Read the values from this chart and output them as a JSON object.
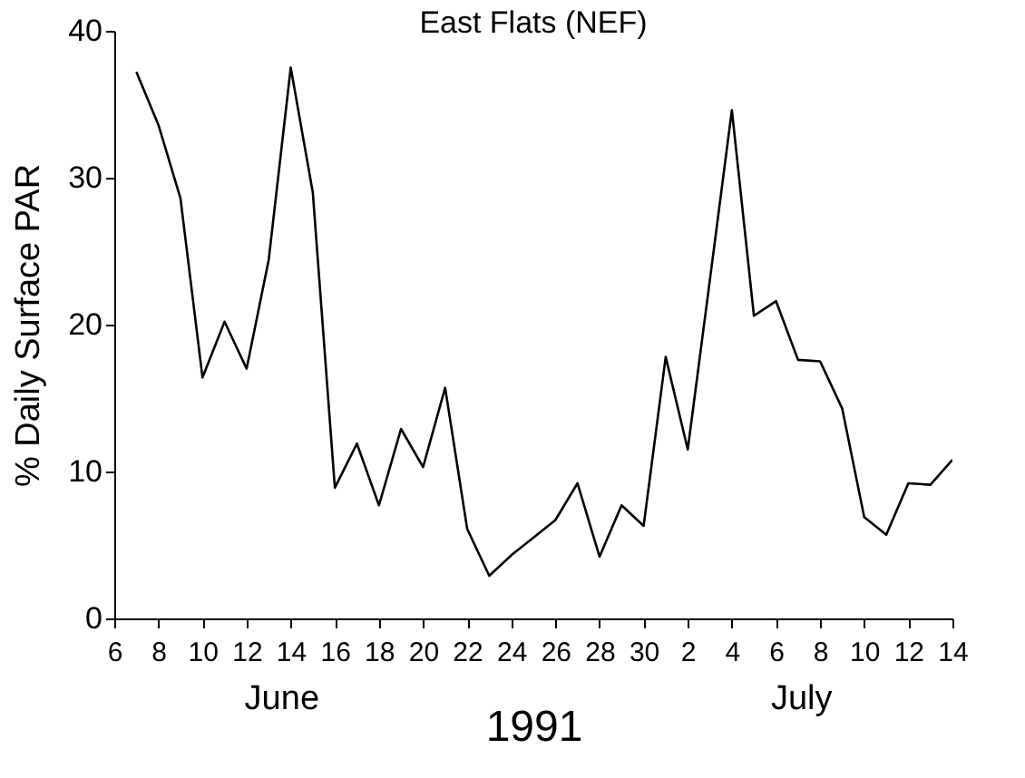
{
  "chart_data": {
    "type": "line",
    "title": "East Flats (NEF)",
    "ylabel": "% Daily Surface PAR",
    "xlabel": "1991",
    "annotations": [
      "June",
      "July"
    ],
    "x": [
      "1991-06-07",
      "1991-06-08",
      "1991-06-09",
      "1991-06-10",
      "1991-06-11",
      "1991-06-12",
      "1991-06-13",
      "1991-06-14",
      "1991-06-15",
      "1991-06-16",
      "1991-06-17",
      "1991-06-18",
      "1991-06-19",
      "1991-06-20",
      "1991-06-21",
      "1991-06-22",
      "1991-06-23",
      "1991-06-24",
      "1991-06-25",
      "1991-06-26",
      "1991-06-27",
      "1991-06-28",
      "1991-06-29",
      "1991-06-30",
      "1991-07-01",
      "1991-07-02",
      "1991-07-03",
      "1991-07-04",
      "1991-07-05",
      "1991-07-06",
      "1991-07-07",
      "1991-07-08",
      "1991-07-09",
      "1991-07-10",
      "1991-07-11",
      "1991-07-12",
      "1991-07-13",
      "1991-07-14"
    ],
    "series": [
      {
        "color": "#000000",
        "values": [
          37.2,
          33.6,
          28.6,
          16.4,
          20.2,
          17.0,
          24.4,
          37.5,
          29.0,
          8.9,
          11.9,
          7.7,
          12.9,
          10.3,
          15.7,
          6.1,
          2.9,
          4.3,
          5.5,
          6.7,
          9.2,
          4.2,
          7.7,
          6.3,
          17.8,
          11.5,
          23.0,
          34.6,
          20.6,
          21.6,
          17.6,
          17.5,
          14.3,
          6.9,
          5.7,
          9.2,
          9.1,
          10.8
        ]
      }
    ],
    "xlim": [
      "1991-06-06",
      "1991-07-14"
    ],
    "xticks": [
      {
        "value": "1991-06-06",
        "label": "6"
      },
      {
        "value": "1991-06-08",
        "label": "8"
      },
      {
        "value": "1991-06-10",
        "label": "10"
      },
      {
        "value": "1991-06-12",
        "label": "12"
      },
      {
        "value": "1991-06-14",
        "label": "14"
      },
      {
        "value": "1991-06-16",
        "label": "16"
      },
      {
        "value": "1991-06-18",
        "label": "18"
      },
      {
        "value": "1991-06-20",
        "label": "20"
      },
      {
        "value": "1991-06-22",
        "label": "22"
      },
      {
        "value": "1991-06-24",
        "label": "24"
      },
      {
        "value": "1991-06-26",
        "label": "26"
      },
      {
        "value": "1991-06-28",
        "label": "28"
      },
      {
        "value": "1991-06-30",
        "label": "30"
      },
      {
        "value": "1991-07-02",
        "label": "2"
      },
      {
        "value": "1991-07-04",
        "label": "4"
      },
      {
        "value": "1991-07-06",
        "label": "6"
      },
      {
        "value": "1991-07-08",
        "label": "8"
      },
      {
        "value": "1991-07-10",
        "label": "10"
      },
      {
        "value": "1991-07-12",
        "label": "12"
      },
      {
        "value": "1991-07-14",
        "label": "14"
      }
    ],
    "ylim": [
      0,
      40
    ],
    "yticks": [
      0,
      10,
      20,
      30,
      40
    ],
    "grid": false,
    "marker": "none",
    "line_style": "solid"
  }
}
